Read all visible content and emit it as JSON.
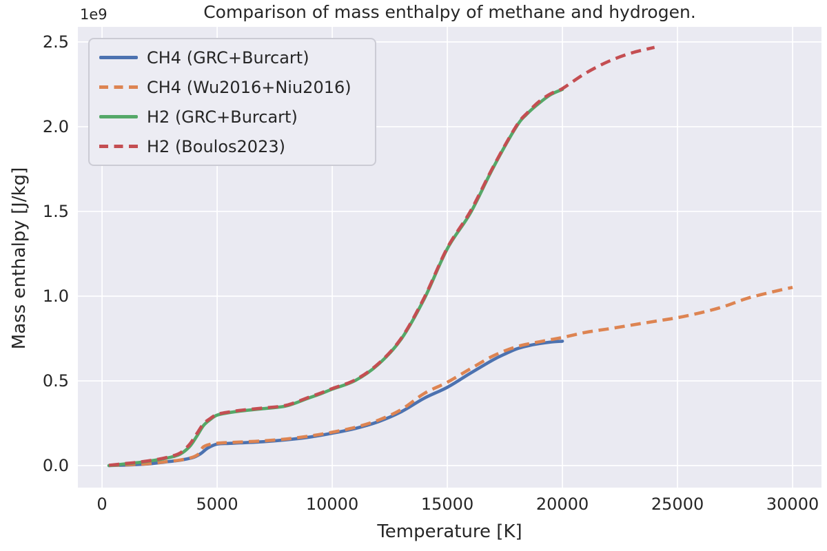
{
  "chart_data": {
    "type": "line",
    "title": "Comparison of mass enthalpy of methane and hydrogen.",
    "xlabel": "Temperature [K]",
    "ylabel": "Mass enthalpy [J/kg]",
    "y_offset_label": "1e9",
    "y_unit_multiplier": 1000000000.0,
    "xlim": [
      -1050,
      31255
    ],
    "ylim": [
      -0.13,
      2.589
    ],
    "x_ticks": [
      0,
      5000,
      10000,
      15000,
      20000,
      25000,
      30000
    ],
    "x_tick_labels": [
      "0",
      "5000",
      "10000",
      "15000",
      "20000",
      "25000",
      "30000"
    ],
    "y_ticks": [
      0.0,
      0.5,
      1.0,
      1.5,
      2.0,
      2.5
    ],
    "y_tick_labels": [
      "0.0",
      "0.5",
      "1.0",
      "1.5",
      "2.0",
      "2.5"
    ],
    "grid": true,
    "legend_position": "upper left",
    "plot_background_color": "#EAEAF2",
    "grid_color": "#FFFFFF",
    "text_color": "#262626",
    "series": [
      {
        "name": "CH4 (GRC+Burcart)",
        "color": "#4C72B0",
        "style": "solid",
        "points": [
          [
            300,
            0.0
          ],
          [
            1000,
            0.003
          ],
          [
            1500,
            0.006
          ],
          [
            2000,
            0.01
          ],
          [
            2500,
            0.017
          ],
          [
            2900,
            0.024
          ],
          [
            3300,
            0.03
          ],
          [
            3700,
            0.04
          ],
          [
            4000,
            0.05
          ],
          [
            4300,
            0.072
          ],
          [
            4600,
            0.104
          ],
          [
            5000,
            0.127
          ],
          [
            5500,
            0.131
          ],
          [
            6000,
            0.134
          ],
          [
            7000,
            0.141
          ],
          [
            8000,
            0.152
          ],
          [
            9000,
            0.168
          ],
          [
            10000,
            0.191
          ],
          [
            11000,
            0.219
          ],
          [
            12000,
            0.259
          ],
          [
            13000,
            0.318
          ],
          [
            14000,
            0.398
          ],
          [
            15000,
            0.462
          ],
          [
            16000,
            0.545
          ],
          [
            17000,
            0.625
          ],
          [
            17500,
            0.658
          ],
          [
            18000,
            0.688
          ],
          [
            18500,
            0.707
          ],
          [
            19000,
            0.72
          ],
          [
            19500,
            0.729
          ],
          [
            20000,
            0.734
          ]
        ]
      },
      {
        "name": "CH4 (Wu2016+Niu2016)",
        "color": "#DD8452",
        "style": "dashed",
        "points": [
          [
            300,
            0.001
          ],
          [
            1000,
            0.004
          ],
          [
            1500,
            0.007
          ],
          [
            2000,
            0.011
          ],
          [
            2500,
            0.018
          ],
          [
            2900,
            0.025
          ],
          [
            3300,
            0.031
          ],
          [
            3700,
            0.041
          ],
          [
            4000,
            0.053
          ],
          [
            4200,
            0.07
          ],
          [
            4400,
            0.11
          ],
          [
            4700,
            0.126
          ],
          [
            5000,
            0.132
          ],
          [
            5500,
            0.136
          ],
          [
            6000,
            0.139
          ],
          [
            7000,
            0.146
          ],
          [
            8000,
            0.157
          ],
          [
            9000,
            0.174
          ],
          [
            10000,
            0.197
          ],
          [
            11000,
            0.226
          ],
          [
            12000,
            0.268
          ],
          [
            13000,
            0.331
          ],
          [
            14000,
            0.426
          ],
          [
            15000,
            0.492
          ],
          [
            16000,
            0.571
          ],
          [
            17000,
            0.648
          ],
          [
            18000,
            0.701
          ],
          [
            19000,
            0.731
          ],
          [
            20000,
            0.756
          ],
          [
            21000,
            0.786
          ],
          [
            22000,
            0.807
          ],
          [
            23000,
            0.829
          ],
          [
            24000,
            0.851
          ],
          [
            25000,
            0.873
          ],
          [
            26000,
            0.902
          ],
          [
            27000,
            0.938
          ],
          [
            28000,
            0.986
          ],
          [
            29000,
            1.021
          ],
          [
            30000,
            1.052
          ]
        ]
      },
      {
        "name": "H2 (GRC+Burcart)",
        "color": "#55A868",
        "style": "solid",
        "points": [
          [
            300,
            0.0
          ],
          [
            1000,
            0.01
          ],
          [
            1500,
            0.017
          ],
          [
            2000,
            0.026
          ],
          [
            2500,
            0.036
          ],
          [
            3000,
            0.05
          ],
          [
            3400,
            0.068
          ],
          [
            3800,
            0.112
          ],
          [
            4100,
            0.17
          ],
          [
            4400,
            0.235
          ],
          [
            4700,
            0.272
          ],
          [
            5000,
            0.298
          ],
          [
            5500,
            0.312
          ],
          [
            6000,
            0.322
          ],
          [
            7000,
            0.336
          ],
          [
            8000,
            0.352
          ],
          [
            9000,
            0.4
          ],
          [
            9500,
            0.424
          ],
          [
            10000,
            0.451
          ],
          [
            11000,
            0.502
          ],
          [
            12000,
            0.597
          ],
          [
            13000,
            0.747
          ],
          [
            14000,
            0.985
          ],
          [
            15000,
            1.28
          ],
          [
            16000,
            1.49
          ],
          [
            17000,
            1.76
          ],
          [
            18000,
            2.0
          ],
          [
            18500,
            2.08
          ],
          [
            19000,
            2.14
          ],
          [
            19500,
            2.19
          ],
          [
            20000,
            2.22
          ]
        ]
      },
      {
        "name": "H2 (Boulos2023)",
        "color": "#C44E52",
        "style": "dashed",
        "points": [
          [
            300,
            0.002
          ],
          [
            1000,
            0.012
          ],
          [
            1500,
            0.019
          ],
          [
            2000,
            0.028
          ],
          [
            2500,
            0.039
          ],
          [
            3000,
            0.055
          ],
          [
            3400,
            0.075
          ],
          [
            3800,
            0.125
          ],
          [
            4100,
            0.185
          ],
          [
            4400,
            0.245
          ],
          [
            4700,
            0.278
          ],
          [
            5000,
            0.302
          ],
          [
            5500,
            0.316
          ],
          [
            6000,
            0.326
          ],
          [
            7000,
            0.34
          ],
          [
            8000,
            0.356
          ],
          [
            9000,
            0.404
          ],
          [
            9500,
            0.428
          ],
          [
            10000,
            0.455
          ],
          [
            11000,
            0.506
          ],
          [
            12000,
            0.601
          ],
          [
            13000,
            0.752
          ],
          [
            14000,
            0.992
          ],
          [
            15000,
            1.285
          ],
          [
            16000,
            1.5
          ],
          [
            17000,
            1.765
          ],
          [
            18000,
            2.005
          ],
          [
            18500,
            2.085
          ],
          [
            19000,
            2.15
          ],
          [
            19500,
            2.195
          ],
          [
            20000,
            2.225
          ],
          [
            21000,
            2.315
          ],
          [
            22000,
            2.385
          ],
          [
            23000,
            2.435
          ],
          [
            24000,
            2.468
          ]
        ]
      }
    ]
  }
}
